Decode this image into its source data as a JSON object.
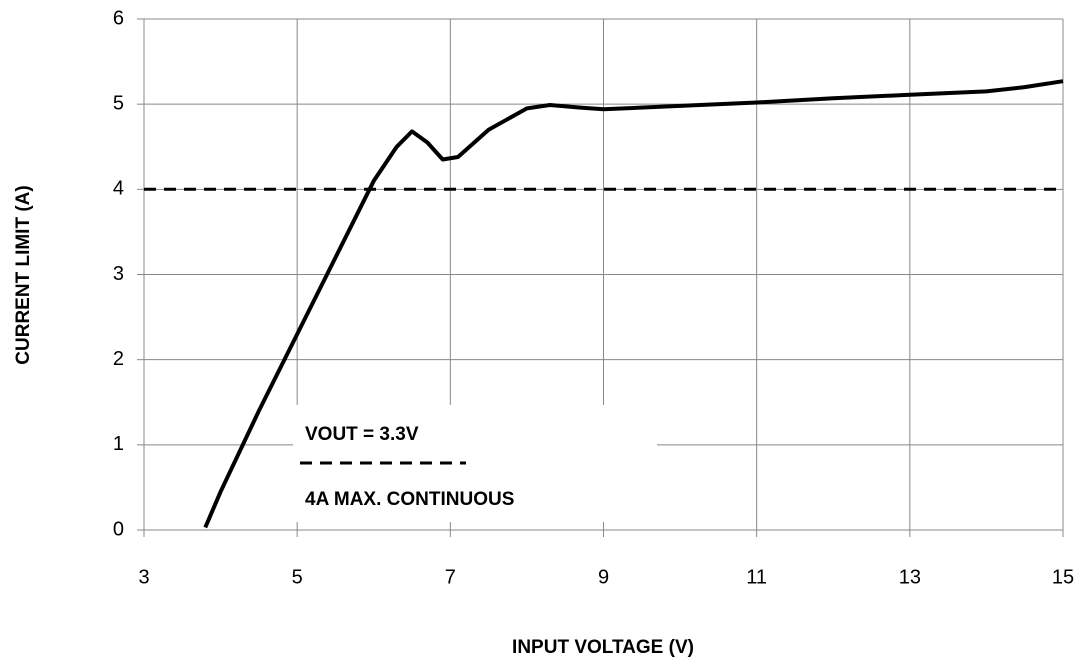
{
  "chart_data": {
    "type": "line",
    "xlabel": "INPUT VOLTAGE (V)",
    "ylabel": "CURRENT LIMIT (A)",
    "annotation": "VOUT = 3.3V",
    "xlim": [
      3,
      15
    ],
    "xticks": [
      3,
      5,
      7,
      9,
      11,
      13,
      15
    ],
    "ylim": [
      0,
      6
    ],
    "yticks": [
      0,
      1,
      2,
      3,
      4,
      5,
      6
    ],
    "grid": true,
    "series": [
      {
        "color": "#000000",
        "x": [
          3.8,
          4,
          4.5,
          5,
          5.5,
          6,
          6.3,
          6.5,
          6.7,
          6.9,
          7.1,
          7.5,
          8,
          8.3,
          8.7,
          9,
          10,
          11,
          12,
          13,
          14,
          14.5,
          15
        ],
        "values": [
          0.03,
          0.45,
          1.4,
          2.3,
          3.2,
          4.1,
          4.5,
          4.68,
          4.55,
          4.35,
          4.38,
          4.7,
          4.95,
          4.99,
          4.96,
          4.94,
          4.98,
          5.02,
          5.07,
          5.11,
          5.15,
          5.2,
          5.27
        ]
      },
      {
        "name": "4A MAX. CONTINUOUS",
        "color": "#000000",
        "dash": true,
        "x": [
          3,
          15
        ],
        "values": [
          4,
          4
        ]
      }
    ]
  }
}
